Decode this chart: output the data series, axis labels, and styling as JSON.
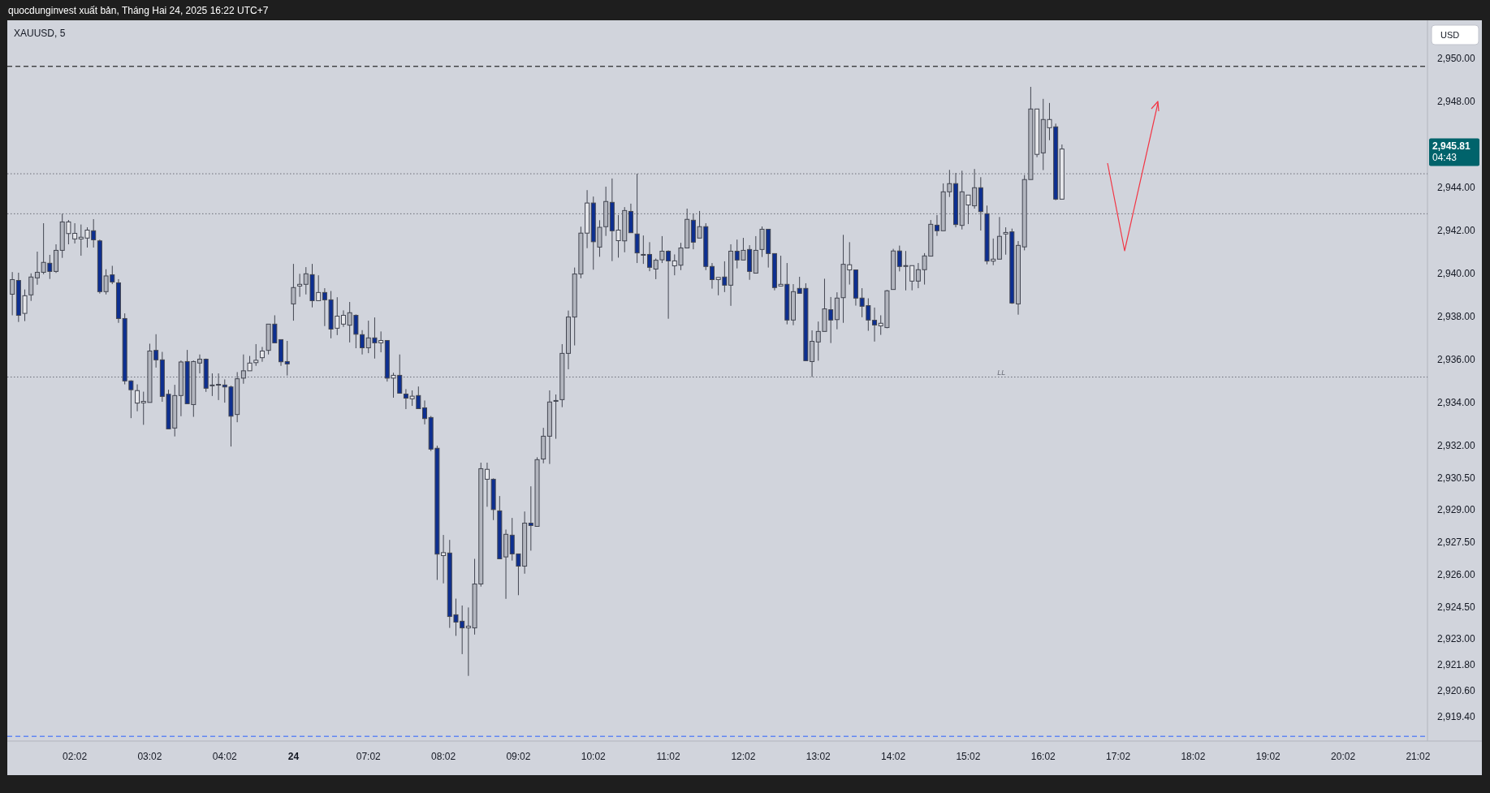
{
  "chart_data": {
    "type": "candlestick",
    "title": "XAUUSD, 5",
    "ylabel": "USD",
    "annotations": [
      "quocdunginvest xuất bản, Tháng Hai 24, 2025 16:22 UTC+7",
      "2,945.81",
      "04:43"
    ],
    "categories": [
      null,
      null,
      null,
      null,
      null,
      null,
      null,
      null,
      null,
      null,
      "02:02",
      null,
      null,
      null,
      null,
      null,
      null,
      null,
      null,
      null,
      null,
      null,
      "03:02",
      null,
      null,
      null,
      null,
      null,
      null,
      null,
      null,
      null,
      null,
      null,
      "04:02",
      null,
      null,
      null,
      null,
      null,
      null,
      null,
      null,
      null,
      null,
      "24",
      null,
      null,
      null,
      null,
      null,
      null,
      null,
      null,
      null,
      null,
      null,
      "07:02",
      null,
      null,
      null,
      null,
      null,
      null,
      null,
      null,
      null,
      null,
      null,
      "08:02",
      null,
      null,
      null,
      null,
      null,
      null,
      null,
      null,
      null,
      null,
      null,
      "09:02",
      null,
      null,
      null,
      null,
      null,
      null,
      null,
      null,
      null,
      null,
      null,
      "10:02",
      null,
      null,
      null,
      null,
      null,
      null,
      null,
      null,
      null,
      null,
      null,
      "11:02",
      null,
      null,
      null,
      null,
      null,
      null,
      null,
      null,
      null,
      null,
      null,
      "12:02",
      null,
      null,
      null,
      null,
      null,
      null,
      null,
      null,
      null,
      null,
      null,
      "13:02",
      null,
      null,
      null,
      null,
      null,
      null,
      null,
      null,
      null,
      null,
      null,
      "14:02",
      null,
      null,
      null,
      null,
      null,
      null,
      null,
      null,
      null,
      null,
      null,
      "15:02",
      null,
      null,
      null,
      null,
      null,
      null,
      null,
      null,
      null,
      null,
      null,
      "16:02",
      null,
      null,
      null,
      null,
      null,
      null,
      null,
      null,
      null,
      null,
      null,
      "17:02",
      null,
      null,
      null,
      null,
      null,
      null,
      null,
      null,
      null,
      null,
      null,
      "18:02",
      null,
      null,
      null,
      null,
      null,
      null,
      null,
      null,
      null,
      null,
      null,
      "19:02",
      null,
      null,
      null,
      null,
      null,
      null,
      null,
      null,
      null,
      null,
      null,
      "20:02",
      null,
      null,
      null,
      null,
      null,
      null,
      null,
      null,
      null,
      null,
      null,
      "21:02",
      null,
      null
    ],
    "ohlc": [
      [
        2939.06,
        2940.09,
        2938.08,
        2939.74
      ],
      [
        2939.7,
        2940.06,
        2937.77,
        2938.08
      ],
      [
        2938.17,
        2939.28,
        2937.81,
        2938.99
      ],
      [
        2939.03,
        2940.03,
        2938.75,
        2939.86
      ],
      [
        2939.82,
        2941.04,
        2939.5,
        2940.08
      ],
      [
        2940.08,
        2942.36,
        2939.99,
        2940.54
      ],
      [
        2940.5,
        2940.89,
        2939.77,
        2940.12
      ],
      [
        2940.12,
        2941.38,
        2940.05,
        2941.1
      ],
      [
        2941.1,
        2942.8,
        2940.75,
        2942.42
      ],
      [
        2941.88,
        2942.51,
        2941.38,
        2942.42
      ],
      [
        2941.63,
        2942.36,
        2941.42,
        2941.89
      ],
      [
        2941.63,
        2942.3,
        2940.85,
        2941.71
      ],
      [
        2941.67,
        2942.17,
        2941.23,
        2942.04
      ],
      [
        2942.01,
        2942.55,
        2941.23,
        2941.59
      ],
      [
        2941.54,
        2941.6,
        2939.09,
        2939.18
      ],
      [
        2939.18,
        2940.22,
        2939.05,
        2939.91
      ],
      [
        2939.96,
        2940.38,
        2939.53,
        2939.63
      ],
      [
        2939.59,
        2939.76,
        2937.73,
        2937.93
      ],
      [
        2937.93,
        2938.17,
        2934.87,
        2935.03
      ],
      [
        2935.03,
        2935.06,
        2933.3,
        2934.62
      ],
      [
        2934.0,
        2934.87,
        2933.62,
        2934.58
      ],
      [
        2934.01,
        2934.53,
        2932.99,
        2934.08
      ],
      [
        2934.03,
        2936.76,
        2934.03,
        2936.42
      ],
      [
        2936.45,
        2937.2,
        2935.65,
        2936.01
      ],
      [
        2936.01,
        2936.38,
        2934.06,
        2934.31
      ],
      [
        2934.41,
        2934.62,
        2932.8,
        2932.8
      ],
      [
        2932.84,
        2934.85,
        2932.45,
        2934.35
      ],
      [
        2934.35,
        2935.98,
        2933.39,
        2935.91
      ],
      [
        2935.93,
        2936.47,
        2933.97,
        2933.97
      ],
      [
        2933.93,
        2935.98,
        2933.36,
        2935.93
      ],
      [
        2935.86,
        2936.26,
        2935.38,
        2936.04
      ],
      [
        2936.04,
        2936.07,
        2934.52,
        2934.69
      ],
      [
        2934.84,
        2935.38,
        2934.33,
        2934.84
      ],
      [
        2934.87,
        2935.38,
        2934.14,
        2934.84
      ],
      [
        2934.84,
        2935.1,
        2934.02,
        2934.75
      ],
      [
        2934.75,
        2934.81,
        2931.98,
        2933.39
      ],
      [
        2933.47,
        2935.44,
        2933.11,
        2935.13
      ],
      [
        2935.16,
        2936.26,
        2934.9,
        2935.5
      ],
      [
        2935.5,
        2936.19,
        2935.5,
        2935.86
      ],
      [
        2935.88,
        2936.74,
        2935.73,
        2935.99
      ],
      [
        2936.11,
        2936.61,
        2935.92,
        2936.42
      ],
      [
        2936.45,
        2937.67,
        2936.26,
        2937.67
      ],
      [
        2937.67,
        2938.08,
        2936.8,
        2936.8
      ],
      [
        2936.95,
        2936.95,
        2935.73,
        2935.92
      ],
      [
        2935.93,
        2936.89,
        2935.28,
        2935.82
      ],
      [
        2938.61,
        2940.47,
        2937.83,
        2939.37
      ],
      [
        2939.44,
        2940.01,
        2938.94,
        2939.52
      ],
      [
        2939.52,
        2940.32,
        2939.05,
        2940.01
      ],
      [
        2939.97,
        2940.47,
        2938.45,
        2938.76
      ],
      [
        2938.76,
        2939.94,
        2938.76,
        2939.14
      ],
      [
        2939.14,
        2939.34,
        2937.58,
        2938.8
      ],
      [
        2938.8,
        2939.21,
        2937.01,
        2937.44
      ],
      [
        2937.48,
        2938.92,
        2937.16,
        2938.04
      ],
      [
        2937.67,
        2938.31,
        2937.54,
        2938.08
      ],
      [
        2937.62,
        2938.7,
        2936.82,
        2938.2
      ],
      [
        2938.08,
        2938.12,
        2936.55,
        2937.2
      ],
      [
        2937.18,
        2937.39,
        2936.26,
        2936.57
      ],
      [
        2936.57,
        2937.83,
        2936.32,
        2937.03
      ],
      [
        2937.03,
        2937.98,
        2936.07,
        2936.8
      ],
      [
        2936.8,
        2937.33,
        2936.36,
        2936.91
      ],
      [
        2936.91,
        2936.91,
        2935.0,
        2935.16
      ],
      [
        2935.16,
        2935.41,
        2934.25,
        2935.29
      ],
      [
        2935.29,
        2936.26,
        2934.46,
        2934.46
      ],
      [
        2934.42,
        2934.65,
        2933.72,
        2934.23
      ],
      [
        2934.2,
        2934.59,
        2933.87,
        2934.32
      ],
      [
        2934.35,
        2934.77,
        2933.74,
        2933.74
      ],
      [
        2933.78,
        2934.12,
        2933.01,
        2933.28
      ],
      [
        2933.33,
        2933.4,
        2931.77,
        2931.86
      ],
      [
        2931.9,
        2932.02,
        2925.78,
        2926.98
      ],
      [
        2926.91,
        2927.87,
        2925.62,
        2927.05
      ],
      [
        2927.03,
        2927.64,
        2923.55,
        2924.08
      ],
      [
        2924.16,
        2924.91,
        2923.18,
        2923.82
      ],
      [
        2923.86,
        2924.59,
        2922.33,
        2923.55
      ],
      [
        2923.55,
        2924.5,
        2921.32,
        2923.63
      ],
      [
        2923.55,
        2926.76,
        2923.24,
        2925.59
      ],
      [
        2925.59,
        2931.23,
        2925.47,
        2930.95
      ],
      [
        2930.46,
        2931.23,
        2929.18,
        2930.92
      ],
      [
        2930.46,
        2930.5,
        2928.56,
        2929.05
      ],
      [
        2928.99,
        2929.68,
        2926.76,
        2926.76
      ],
      [
        2926.85,
        2928.12,
        2924.9,
        2927.9
      ],
      [
        2927.86,
        2928.66,
        2926.68,
        2926.99
      ],
      [
        2926.99,
        2926.99,
        2925.07,
        2926.42
      ],
      [
        2926.42,
        2928.96,
        2926.07,
        2928.42
      ],
      [
        2928.42,
        2930.13,
        2927.14,
        2928.31
      ],
      [
        2928.27,
        2931.48,
        2928.27,
        2931.37
      ],
      [
        2931.4,
        2932.85,
        2931.2,
        2932.46
      ],
      [
        2932.46,
        2934.59,
        2931.17,
        2934.05
      ],
      [
        2934.12,
        2934.4,
        2932.34,
        2934.12
      ],
      [
        2934.16,
        2936.74,
        2933.81,
        2936.31
      ],
      [
        2936.31,
        2938.3,
        2935.57,
        2938.0
      ],
      [
        2938.0,
        2940.3,
        2936.68,
        2940.0
      ],
      [
        2940.0,
        2942.2,
        2939.8,
        2941.9
      ],
      [
        2941.9,
        2943.9,
        2941.2,
        2943.3
      ],
      [
        2943.3,
        2943.6,
        2940.2,
        2941.5
      ],
      [
        2941.25,
        2942.5,
        2940.8,
        2942.17
      ],
      [
        2942.2,
        2944.06,
        2941.77,
        2943.37
      ],
      [
        2943.33,
        2944.44,
        2940.6,
        2942.01
      ],
      [
        2941.55,
        2942.74,
        2940.76,
        2942.04
      ],
      [
        2941.54,
        2943.11,
        2941.01,
        2942.95
      ],
      [
        2942.91,
        2943.27,
        2941.92,
        2941.92
      ],
      [
        2941.86,
        2944.66,
        2940.51,
        2940.98
      ],
      [
        2940.91,
        2941.79,
        2940.47,
        2940.91
      ],
      [
        2940.91,
        2941.48,
        2940.13,
        2940.31
      ],
      [
        2940.23,
        2940.72,
        2939.76,
        2940.64
      ],
      [
        2940.66,
        2941.76,
        2940.51,
        2941.06
      ],
      [
        2941.06,
        2941.1,
        2937.92,
        2940.61
      ],
      [
        2940.38,
        2940.91,
        2939.94,
        2940.61
      ],
      [
        2940.41,
        2941.45,
        2940.18,
        2941.21
      ],
      [
        2941.21,
        2943.04,
        2941.21,
        2942.54
      ],
      [
        2942.5,
        2942.81,
        2941.15,
        2941.48
      ],
      [
        2941.67,
        2942.93,
        2941.67,
        2942.2
      ],
      [
        2942.2,
        2942.36,
        2940.18,
        2940.35
      ],
      [
        2940.35,
        2940.51,
        2939.32,
        2939.74
      ],
      [
        2939.74,
        2939.84,
        2939.01,
        2939.84
      ],
      [
        2939.86,
        2940.59,
        2939.16,
        2939.48
      ],
      [
        2939.48,
        2941.38,
        2938.52,
        2941.06
      ],
      [
        2941.06,
        2941.6,
        2940.26,
        2940.65
      ],
      [
        2940.65,
        2941.68,
        2940.65,
        2941.1
      ],
      [
        2941.14,
        2941.34,
        2939.73,
        2940.12
      ],
      [
        2940.04,
        2941.76,
        2940.04,
        2941.1
      ],
      [
        2941.14,
        2942.21,
        2940.79,
        2942.08
      ],
      [
        2942.08,
        2942.08,
        2940.3,
        2940.95
      ],
      [
        2940.95,
        2940.95,
        2939.24,
        2939.37
      ],
      [
        2939.44,
        2940.85,
        2939.44,
        2939.52
      ],
      [
        2939.52,
        2940.51,
        2937.66,
        2937.86
      ],
      [
        2937.86,
        2939.53,
        2937.62,
        2939.18
      ],
      [
        2939.33,
        2939.87,
        2939.1,
        2939.1
      ],
      [
        2939.33,
        2939.57,
        2935.97,
        2935.97
      ],
      [
        2935.93,
        2937.38,
        2935.21,
        2936.87
      ],
      [
        2936.84,
        2937.79,
        2935.97,
        2937.33
      ],
      [
        2937.33,
        2939.78,
        2937.33,
        2938.38
      ],
      [
        2938.34,
        2938.93,
        2936.79,
        2937.86
      ],
      [
        2937.88,
        2939.15,
        2937.43,
        2938.88
      ],
      [
        2938.9,
        2941.82,
        2937.73,
        2940.45
      ],
      [
        2940.19,
        2941.48,
        2939.51,
        2940.43
      ],
      [
        2940.19,
        2940.19,
        2938.53,
        2938.88
      ],
      [
        2938.88,
        2939.34,
        2937.99,
        2938.5
      ],
      [
        2938.53,
        2938.87,
        2937.36,
        2937.86
      ],
      [
        2937.85,
        2938.44,
        2936.86,
        2937.63
      ],
      [
        2937.59,
        2938.08,
        2937.17,
        2937.71
      ],
      [
        2937.51,
        2939.26,
        2937.48,
        2939.22
      ],
      [
        2939.28,
        2941.17,
        2939.28,
        2941.07
      ],
      [
        2941.07,
        2941.32,
        2940.12,
        2940.35
      ],
      [
        2940.39,
        2941.07,
        2939.24,
        2940.39
      ],
      [
        2939.67,
        2940.39,
        2939.24,
        2940.39
      ],
      [
        2939.67,
        2940.51,
        2939.34,
        2940.2
      ],
      [
        2940.2,
        2940.97,
        2939.51,
        2940.84
      ],
      [
        2940.83,
        2942.51,
        2940.83,
        2942.31
      ],
      [
        2942.27,
        2942.74,
        2941.77,
        2942.01
      ],
      [
        2942.01,
        2944.21,
        2942.01,
        2943.82
      ],
      [
        2943.82,
        2944.84,
        2943.58,
        2944.2
      ],
      [
        2944.2,
        2944.7,
        2942.17,
        2942.3
      ],
      [
        2942.26,
        2944.8,
        2942.07,
        2943.82
      ],
      [
        2943.21,
        2943.67,
        2942.32,
        2943.67
      ],
      [
        2943.17,
        2944.88,
        2943.04,
        2944.01
      ],
      [
        2944.01,
        2944.5,
        2942.02,
        2942.9
      ],
      [
        2942.8,
        2943.18,
        2940.45,
        2940.6
      ],
      [
        2940.6,
        2941.65,
        2940.41,
        2940.69
      ],
      [
        2940.69,
        2942.65,
        2940.69,
        2941.75
      ],
      [
        2941.86,
        2942.17,
        2940.9,
        2941.93
      ],
      [
        2941.96,
        2942.11,
        2938.61,
        2938.65
      ],
      [
        2938.61,
        2941.53,
        2938.11,
        2941.33
      ],
      [
        2941.26,
        2944.6,
        2941.1,
        2944.39
      ],
      [
        2944.39,
        2948.7,
        2944.39,
        2947.67
      ],
      [
        2945.56,
        2947.67,
        2945.43,
        2947.67
      ],
      [
        2945.63,
        2948.14,
        2944.83,
        2947.18
      ],
      [
        2946.8,
        2947.95,
        2946.22,
        2947.18
      ],
      [
        2946.84,
        2946.99,
        2943.43,
        2943.48
      ],
      [
        2943.48,
        2946.02,
        2943.48,
        2945.81
      ],
      null,
      null,
      null,
      null,
      null,
      null,
      null,
      null,
      null,
      null,
      null,
      null,
      null,
      null,
      null,
      null,
      null,
      null,
      null,
      null,
      null,
      null,
      null,
      null,
      null,
      null,
      null,
      null,
      null,
      null,
      null,
      null,
      null,
      null,
      null,
      null,
      null,
      null,
      null,
      null,
      null,
      null,
      null,
      null,
      null,
      null,
      null,
      null,
      null,
      null,
      null,
      null,
      null,
      null,
      null,
      null,
      null,
      null,
      null
    ],
    "colors": [
      "#b2b5be",
      "#0d2f91",
      "#e6e7eb",
      "#b2b5be",
      "#b2b5be",
      "#b2b5be",
      "#0d2f91",
      "#b2b5be",
      "#b2b5be",
      "#e6e7eb",
      "#e6e7eb",
      "#e6e7eb",
      "#e6e7eb",
      "#0d2f91",
      "#0d2f91",
      "#b2b5be",
      "#0d2f91",
      "#0d2f91",
      "#0d2f91",
      "#0d2f91",
      "#e6e7eb",
      "#e6e7eb",
      "#b2b5be",
      "#0d2f91",
      "#0d2f91",
      "#0d2f91",
      "#b2b5be",
      "#b2b5be",
      "#0d2f91",
      "#b2b5be",
      "#b2b5be",
      "#0d2f91",
      "#b2b5be",
      "#0d2f91",
      "#0d2f91",
      "#0d2f91",
      "#b2b5be",
      "#b2b5be",
      "#e6e7eb",
      "#e6e7eb",
      "#e6e7eb",
      "#b2b5be",
      "#0d2f91",
      "#0d2f91",
      "#0d2f91",
      "#b2b5be",
      "#e6e7eb",
      "#b2b5be",
      "#0d2f91",
      "#e6e7eb",
      "#0d2f91",
      "#0d2f91",
      "#e6e7eb",
      "#e6e7eb",
      "#b2b5be",
      "#0d2f91",
      "#0d2f91",
      "#b2b5be",
      "#0d2f91",
      "#e6e7eb",
      "#0d2f91",
      "#e6e7eb",
      "#0d2f91",
      "#0d2f91",
      "#e6e7eb",
      "#0d2f91",
      "#0d2f91",
      "#0d2f91",
      "#0d2f91",
      "#e6e7eb",
      "#0d2f91",
      "#0d2f91",
      "#0d2f91",
      "#e6e7eb",
      "#b2b5be",
      "#b2b5be",
      "#e6e7eb",
      "#0d2f91",
      "#0d2f91",
      "#b2b5be",
      "#0d2f91",
      "#0d2f91",
      "#b2b5be",
      "#0d2f91",
      "#b2b5be",
      "#b2b5be",
      "#b2b5be",
      "#b2b5be",
      "#b2b5be",
      "#b2b5be",
      "#b2b5be",
      "#b2b5be",
      "#e6e7eb",
      "#0d2f91",
      "#b2b5be",
      "#b2b5be",
      "#0d2f91",
      "#e6e7eb",
      "#b2b5be",
      "#0d2f91",
      "#0d2f91",
      "#b2b5be",
      "#0d2f91",
      "#b2b5be",
      "#b2b5be",
      "#0d2f91",
      "#e6e7eb",
      "#b2b5be",
      "#b2b5be",
      "#0d2f91",
      "#b2b5be",
      "#0d2f91",
      "#0d2f91",
      "#e6e7eb",
      "#0d2f91",
      "#b2b5be",
      "#0d2f91",
      "#b2b5be",
      "#0d2f91",
      "#b2b5be",
      "#b2b5be",
      "#0d2f91",
      "#0d2f91",
      "#e6e7eb",
      "#0d2f91",
      "#b2b5be",
      "#0d2f91",
      "#0d2f91",
      "#b2b5be",
      "#b2b5be",
      "#b2b5be",
      "#0d2f91",
      "#b2b5be",
      "#b2b5be",
      "#e6e7eb",
      "#0d2f91",
      "#0d2f91",
      "#0d2f91",
      "#0d2f91",
      "#e6e7eb",
      "#b2b5be",
      "#b2b5be",
      "#0d2f91",
      "#b2b5be",
      "#e6e7eb",
      "#b2b5be",
      "#b2b5be",
      "#b2b5be",
      "#0d2f91",
      "#b2b5be",
      "#b2b5be",
      "#0d2f91",
      "#b2b5be",
      "#e6e7eb",
      "#b2b5be",
      "#0d2f91",
      "#0d2f91",
      "#e6e7eb",
      "#b2b5be",
      "#e6e7eb",
      "#0d2f91",
      "#b2b5be",
      "#b2b5be",
      "#b2b5be",
      "#e6e7eb",
      "#b2b5be",
      "#e6e7eb",
      "#0d2f91",
      "#e6e7eb",
      null,
      null,
      null,
      null,
      null,
      null,
      null,
      null,
      null,
      null,
      null,
      null,
      null,
      null,
      null,
      null,
      null,
      null,
      null,
      null,
      null,
      null,
      null,
      null,
      null,
      null,
      null,
      null,
      null,
      null,
      null,
      null,
      null,
      null,
      null,
      null,
      null,
      null,
      null,
      null,
      null,
      null,
      null,
      null,
      null,
      null,
      null,
      null,
      null,
      null,
      null,
      null,
      null,
      null,
      null,
      null,
      null,
      null,
      null
    ],
    "ylim": [
      2918.29,
      2951.68
    ],
    "yticks": [
      {
        "value": 2950,
        "label": "2,950.00"
      },
      {
        "value": 2948,
        "label": "2,948.00"
      },
      {
        "value": 2944,
        "label": "2,944.00"
      },
      {
        "value": 2942,
        "label": "2,942.00"
      },
      {
        "value": 2940,
        "label": "2,940.00"
      },
      {
        "value": 2938,
        "label": "2,938.00"
      },
      {
        "value": 2936,
        "label": "2,936.00"
      },
      {
        "value": 2934,
        "label": "2,934.00"
      },
      {
        "value": 2932,
        "label": "2,932.00"
      },
      {
        "value": 2930.5,
        "label": "2,930.50"
      },
      {
        "value": 2929,
        "label": "2,929.00"
      },
      {
        "value": 2927.5,
        "label": "2,927.50"
      },
      {
        "value": 2926,
        "label": "2,926.00"
      },
      {
        "value": 2924.5,
        "label": "2,924.50"
      },
      {
        "value": 2923,
        "label": "2,923.00"
      },
      {
        "value": 2921.8,
        "label": "2,921.80"
      },
      {
        "value": 2920.6,
        "label": "2,920.60"
      },
      {
        "value": 2919.4,
        "label": "2,919.40"
      }
    ],
    "ref_lines": [
      {
        "axis": "y",
        "value": 2949.65,
        "color": "#000000",
        "line_style": "dashed"
      },
      {
        "axis": "y",
        "value": 2942.8,
        "color": "#6a6d78",
        "line_style": "dotted"
      },
      {
        "axis": "y",
        "value": 2944.66,
        "color": "#6a6d78",
        "line_style": "dotted"
      },
      {
        "axis": "y",
        "value": 2935.21,
        "label": "LL",
        "color": "#6a6d78",
        "line_style": "dotted"
      },
      {
        "axis": "y",
        "value": 2918.51,
        "color": "#2962ff",
        "line_style": "dashed"
      }
    ],
    "grid": false
  }
}
